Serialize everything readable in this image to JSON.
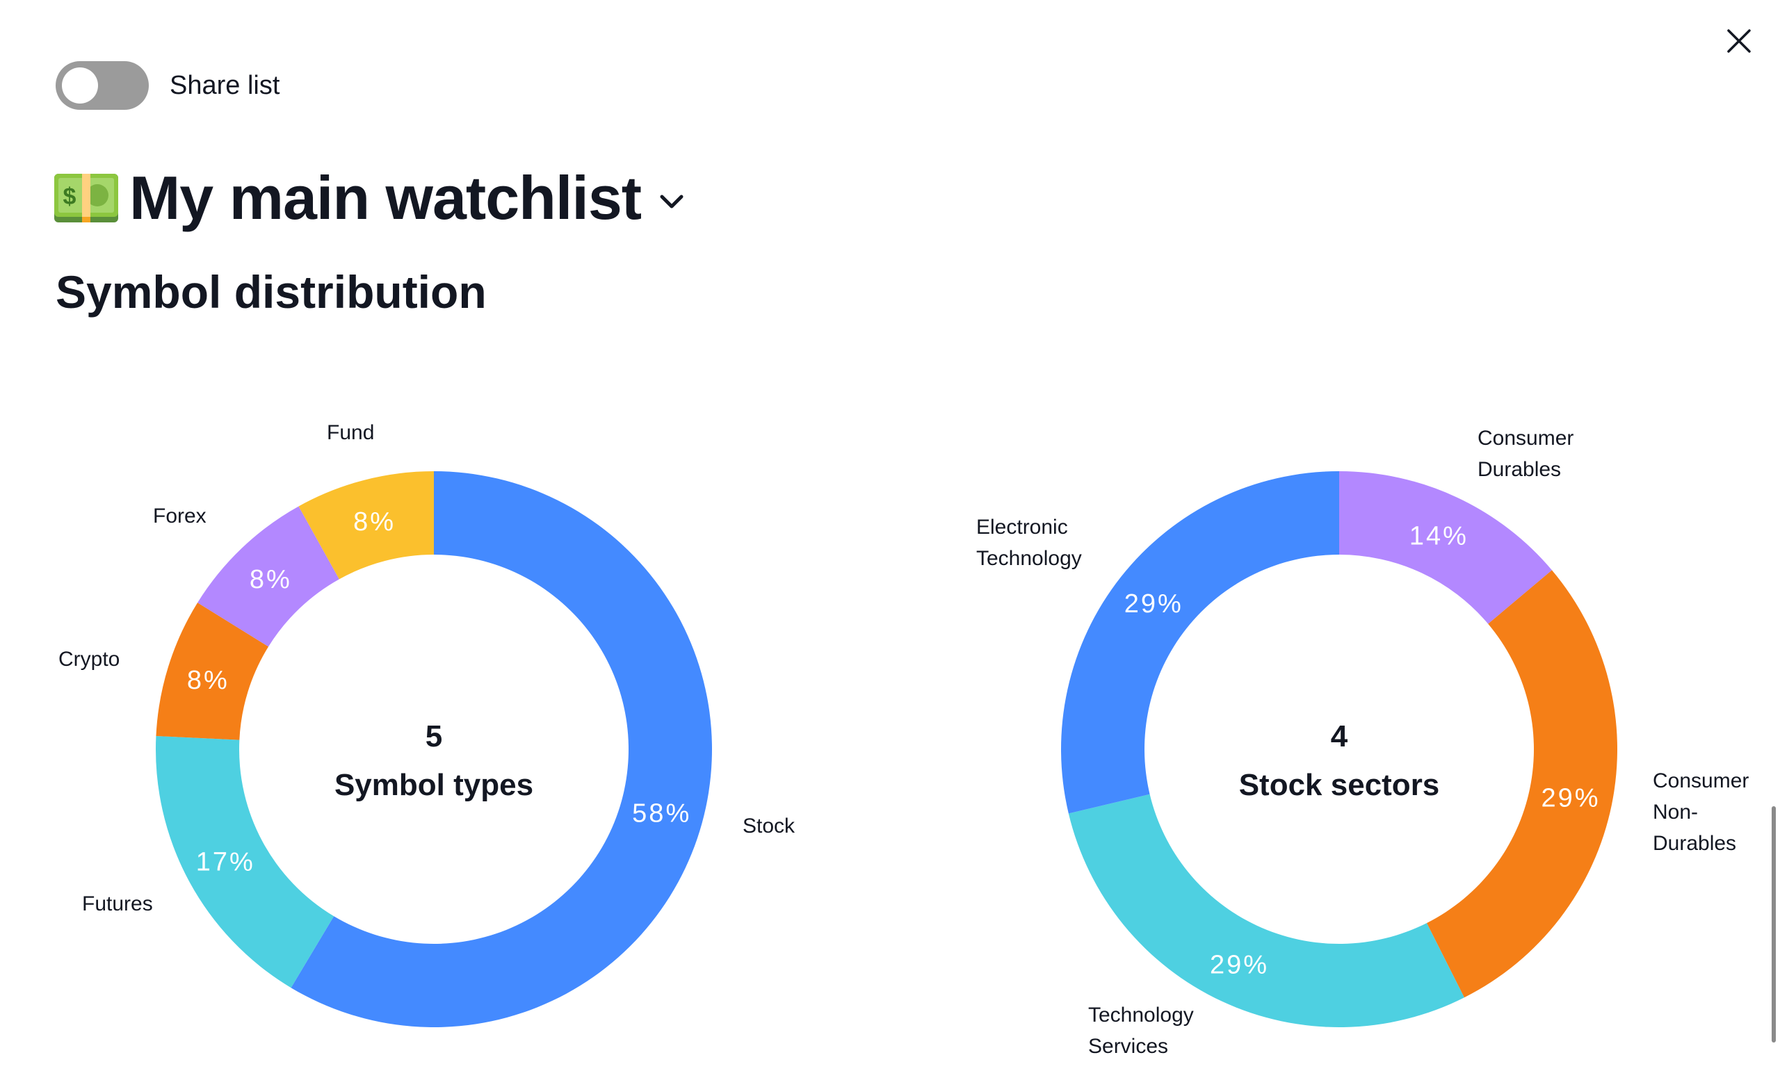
{
  "window": {
    "close_icon": "close-icon"
  },
  "share": {
    "label": "Share list",
    "enabled": false
  },
  "watchlist": {
    "icon": "money-bill-icon",
    "title": "My main watchlist"
  },
  "section": {
    "title": "Symbol distribution"
  },
  "chart_data": [
    {
      "type": "pie",
      "variant": "donut",
      "center_value": "5",
      "center_label": "Symbol types",
      "categories": [
        "Stock",
        "Futures",
        "Crypto",
        "Forex",
        "Fund"
      ],
      "values": [
        58,
        17,
        8,
        8,
        8
      ],
      "value_labels": [
        "58%",
        "17%",
        "8%",
        "8%",
        "8%"
      ],
      "colors": [
        "#448aff",
        "#4ed0e1",
        "#f57f17",
        "#b388ff",
        "#fbc02d"
      ]
    },
    {
      "type": "pie",
      "variant": "donut",
      "center_value": "4",
      "center_label": "Stock sectors",
      "categories": [
        "Consumer Durables",
        "Consumer Non-Durables",
        "Technology Services",
        "Electronic Technology"
      ],
      "label_lines": [
        [
          "Consumer",
          "Durables"
        ],
        [
          "Consumer",
          "Non-",
          "Durables"
        ],
        [
          "Technology",
          "Services"
        ],
        [
          "Electronic",
          "Technology"
        ]
      ],
      "values": [
        14,
        29,
        29,
        29
      ],
      "value_labels": [
        "14%",
        "29%",
        "29%",
        "29%"
      ],
      "colors": [
        "#b388ff",
        "#f57f17",
        "#4ed0e1",
        "#448aff"
      ]
    }
  ]
}
